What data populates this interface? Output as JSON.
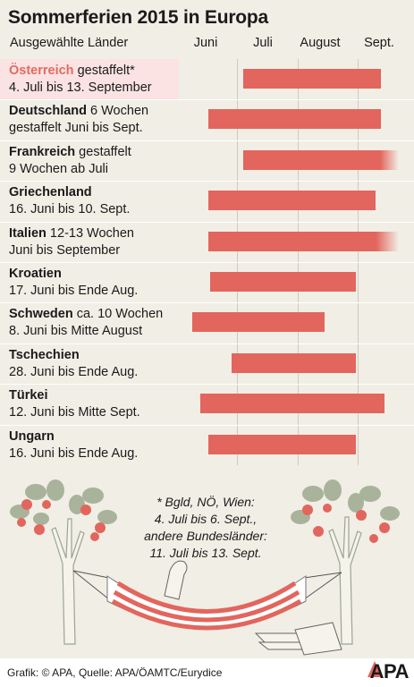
{
  "title": "Sommerferien 2015 in Europa",
  "subhead": "Ausgewählte Länder",
  "footer": {
    "credit": "Grafik: © APA, Quelle: APA/ÖAMTC/Eurydice",
    "logo": "APA"
  },
  "note": [
    "* Bgld, NÖ, Wien:",
    "4. Juli bis 6. Sept.,",
    "andere Bundesländer:",
    "11. Juli bis 13. Sept."
  ],
  "colors": {
    "bar": "#e2665d",
    "highlight_row": "#fae3e2",
    "highlight_text": "#e06c63",
    "background": "#f1eee6"
  },
  "chart_data": {
    "type": "bar",
    "orientation": "horizontal (Gantt)",
    "title": "Sommerferien 2015 in Europa",
    "xlabel": "",
    "ylabel": "Ausgewählte Länder",
    "x_ticks": [
      "Juni",
      "Juli",
      "August",
      "Sept."
    ],
    "x_range": [
      "2015-06-01",
      "2015-09-30"
    ],
    "grid": true,
    "categories": [
      "Österreich",
      "Deutschland",
      "Frankreich",
      "Griechenland",
      "Italien",
      "Kroatien",
      "Schweden",
      "Tschechien",
      "Türkei",
      "Ungarn"
    ],
    "rows": [
      {
        "country": "Österreich",
        "detail": " gestaffelt*",
        "line2": "4. Juli bis 13. September",
        "start": "2015-07-04",
        "end": "2015-09-13",
        "highlight": true,
        "fade": false
      },
      {
        "country": "Deutschland",
        "detail": " 6 Wochen",
        "line2": "gestaffelt Juni bis Sept.",
        "start": "2015-06-16",
        "end": "2015-09-13",
        "highlight": false,
        "fade": false
      },
      {
        "country": "Frankreich",
        "detail": " gestaffelt",
        "line2": "9 Wochen ab Juli",
        "start": "2015-07-04",
        "end": "2015-09-30",
        "highlight": false,
        "fade": true
      },
      {
        "country": "Griechenland",
        "detail": "",
        "line2": "16. Juni bis 10. Sept.",
        "start": "2015-06-16",
        "end": "2015-09-10",
        "highlight": false,
        "fade": false
      },
      {
        "country": "Italien",
        "detail": " 12-13 Wochen",
        "line2": "Juni bis September",
        "start": "2015-06-16",
        "end": "2015-09-30",
        "highlight": false,
        "fade": true
      },
      {
        "country": "Kroatien",
        "detail": "",
        "line2": "17. Juni bis Ende Aug.",
        "start": "2015-06-17",
        "end": "2015-08-31",
        "highlight": false,
        "fade": false
      },
      {
        "country": "Schweden",
        "detail": " ca. 10 Wochen",
        "line2": "8. Juni bis Mitte August",
        "start": "2015-06-08",
        "end": "2015-08-15",
        "highlight": false,
        "fade": false
      },
      {
        "country": "Tschechien",
        "detail": "",
        "line2": "28. Juni bis Ende Aug.",
        "start": "2015-06-28",
        "end": "2015-08-31",
        "highlight": false,
        "fade": false
      },
      {
        "country": "Türkei",
        "detail": "",
        "line2": "12. Juni bis Mitte Sept.",
        "start": "2015-06-12",
        "end": "2015-09-15",
        "highlight": false,
        "fade": false
      },
      {
        "country": "Ungarn",
        "detail": "",
        "line2": "16. Juni bis Ende Aug.",
        "start": "2015-06-16",
        "end": "2015-08-31",
        "highlight": false,
        "fade": false
      }
    ]
  }
}
